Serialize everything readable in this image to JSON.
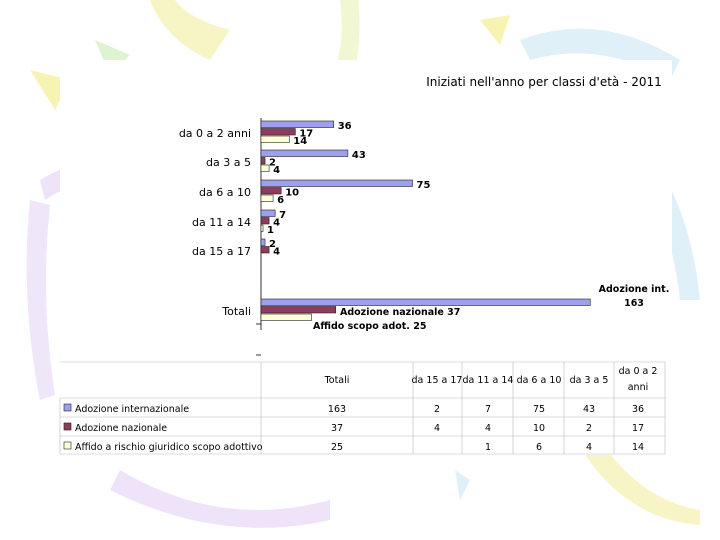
{
  "chart_data": {
    "type": "bar",
    "orientation": "horizontal",
    "title": "Iniziati nell'anno per classi d'età - 2011",
    "categories": [
      "Totali",
      "da 15 a 17",
      "da 11 a 14",
      "da 6 a 10",
      "da 3 a 5",
      "da 0 a 2 anni"
    ],
    "series": [
      {
        "name": "Adozione internazionale",
        "values": [
          163,
          2,
          7,
          75,
          43,
          36
        ],
        "color": "#9f9ff0"
      },
      {
        "name": "Adozione nazionale",
        "values": [
          37,
          4,
          4,
          10,
          2,
          17
        ],
        "color": "#8e3c5e"
      },
      {
        "name": "Affido a rischio giuridico scopo adottivo",
        "values": [
          25,
          null,
          1,
          6,
          4,
          14
        ],
        "color": "#ffffd8"
      }
    ],
    "totals_labels": [
      "Adozione int.",
      "163",
      "Adozione nazionale 37",
      "Affido scopo adot. 25"
    ],
    "legend": "data-table-below",
    "grid": false
  }
}
